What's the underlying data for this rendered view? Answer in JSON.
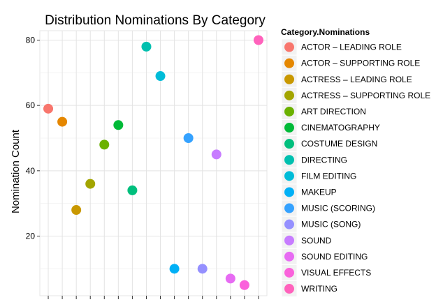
{
  "chart_data": {
    "type": "scatter",
    "title": "Distribution Nominations By Category",
    "xlabel": "",
    "ylabel": "Nomination Count",
    "ylim": [
      2,
      85
    ],
    "y_ticks": [
      20,
      40,
      60,
      80
    ],
    "grid": true,
    "legend_position": "right",
    "legend_title": "Category.Nominations",
    "series": [
      {
        "name": "ACTOR – LEADING ROLE",
        "color": "#F8766D",
        "value": 59
      },
      {
        "name": "ACTOR – SUPPORTING ROLE",
        "color": "#E58700",
        "value": 55
      },
      {
        "name": "ACTRESS – LEADING ROLE",
        "color": "#C99800",
        "value": 28
      },
      {
        "name": "ACTRESS – SUPPORTING ROLE",
        "color": "#A3A500",
        "value": 36
      },
      {
        "name": "ART DIRECTION",
        "color": "#6BB100",
        "value": 48
      },
      {
        "name": "CINEMATOGRAPHY",
        "color": "#00BA38",
        "value": 54
      },
      {
        "name": "COSTUME DESIGN",
        "color": "#00BF7D",
        "value": 34
      },
      {
        "name": "DIRECTING",
        "color": "#00C0AF",
        "value": 78
      },
      {
        "name": "FILM EDITING",
        "color": "#00BCD8",
        "value": 69
      },
      {
        "name": "MAKEUP",
        "color": "#00B0F6",
        "value": 10
      },
      {
        "name": "MUSIC (SCORING)",
        "color": "#35A2FF",
        "value": 50
      },
      {
        "name": "MUSIC (SONG)",
        "color": "#9590FF",
        "value": 10
      },
      {
        "name": "SOUND",
        "color": "#C77CFF",
        "value": 45
      },
      {
        "name": "SOUND EDITING",
        "color": "#E76BF3",
        "value": 7
      },
      {
        "name": "VISUAL EFFECTS",
        "color": "#FA62DB",
        "value": 5
      },
      {
        "name": "WRITING",
        "color": "#FF62BC",
        "value": 80
      }
    ]
  }
}
